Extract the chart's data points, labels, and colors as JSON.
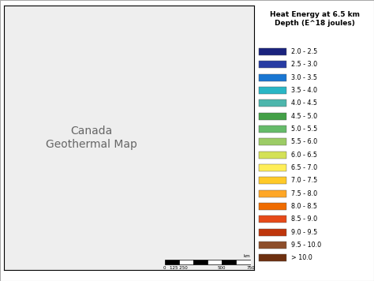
{
  "title": "Heat Energy at 6.5 km\nDepth (E^18 joules)",
  "legend_entries": [
    {
      "label": "2.0 - 2.5",
      "color": "#1a237e"
    },
    {
      "label": "2.5 - 3.0",
      "color": "#283ca3"
    },
    {
      "label": "3.0 - 3.5",
      "color": "#1976d2"
    },
    {
      "label": "3.5 - 4.0",
      "color": "#29b6c5"
    },
    {
      "label": "4.0 - 4.5",
      "color": "#4db6ac"
    },
    {
      "label": "4.5 - 5.0",
      "color": "#43a047"
    },
    {
      "label": "5.0 - 5.5",
      "color": "#66bb6a"
    },
    {
      "label": "5.5 - 6.0",
      "color": "#9ccc65"
    },
    {
      "label": "6.0 - 6.5",
      "color": "#d4e157"
    },
    {
      "label": "6.5 - 7.0",
      "color": "#ffee58"
    },
    {
      "label": "7.0 - 7.5",
      "color": "#ffca28"
    },
    {
      "label": "7.5 - 8.0",
      "color": "#ffa726"
    },
    {
      "label": "8.0 - 8.5",
      "color": "#ef6c00"
    },
    {
      "label": "8.5 - 9.0",
      "color": "#e64a19"
    },
    {
      "label": "9.0 - 9.5",
      "color": "#bf360c"
    },
    {
      "label": "9.5 - 10.0",
      "color": "#8d4e2a"
    },
    {
      "label": "> 10.0",
      "color": "#6d2f0f"
    }
  ],
  "bg_color": "#ffffff",
  "legend_title_fontsize": 6.5,
  "legend_label_fontsize": 5.8,
  "figsize": [
    4.74,
    3.56
  ],
  "dpi": 100,
  "map_extent": [
    -141,
    -52,
    41,
    84
  ],
  "scale_ticks": [
    0,
    125,
    250,
    500,
    750
  ],
  "scale_label": "km"
}
